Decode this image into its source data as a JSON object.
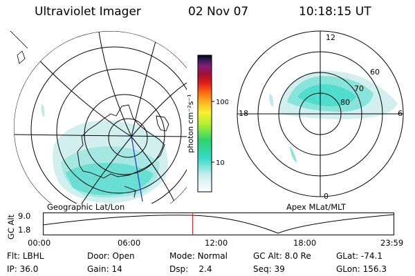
{
  "header": {
    "instrument": "Ultraviolet Imager",
    "date": "02 Nov 07",
    "time": "10:18:15 UT"
  },
  "colorbar": {
    "label": "photon cm⁻²s⁻¹",
    "ticks": [
      "100",
      "10"
    ]
  },
  "geo_panel": {
    "label": "Geographic Lat/Lon"
  },
  "apex_panel": {
    "label": "Apex MLat/MLT",
    "mlt_labels": {
      "top": "12",
      "left": "18",
      "right": "6",
      "bottom": "0"
    },
    "lat_labels": [
      "60",
      "70",
      "80"
    ]
  },
  "orbit_plot": {
    "ylabel": "GC Alt",
    "yticks": [
      "9.0",
      "1.8"
    ],
    "xticks": [
      "00:00",
      "06:00",
      "12:00",
      "18:00",
      "23:59"
    ],
    "current_time_fraction": 0.425
  },
  "status": {
    "row1": [
      {
        "label": "Flt:",
        "value": "LBHL"
      },
      {
        "label": "Door:",
        "value": "Open"
      },
      {
        "label": "Mode:",
        "value": "Normal"
      },
      {
        "label": "GC Alt:",
        "value": "8.0 Re"
      },
      {
        "label": "GLat:",
        "value": "-74.1"
      }
    ],
    "row2": [
      {
        "label": "IP:",
        "value": "36.0"
      },
      {
        "label": "Gain:",
        "value": "14"
      },
      {
        "label": "Dsp:",
        "value": "2.4"
      },
      {
        "label": "Seq:",
        "value": "39"
      },
      {
        "label": "GLon:",
        "value": "156.3"
      }
    ]
  },
  "colors": {
    "aurora": "#33d9c8",
    "aurora_pale": "#cfeeee",
    "marker": "#e02020",
    "meridian": "#2233cc"
  }
}
